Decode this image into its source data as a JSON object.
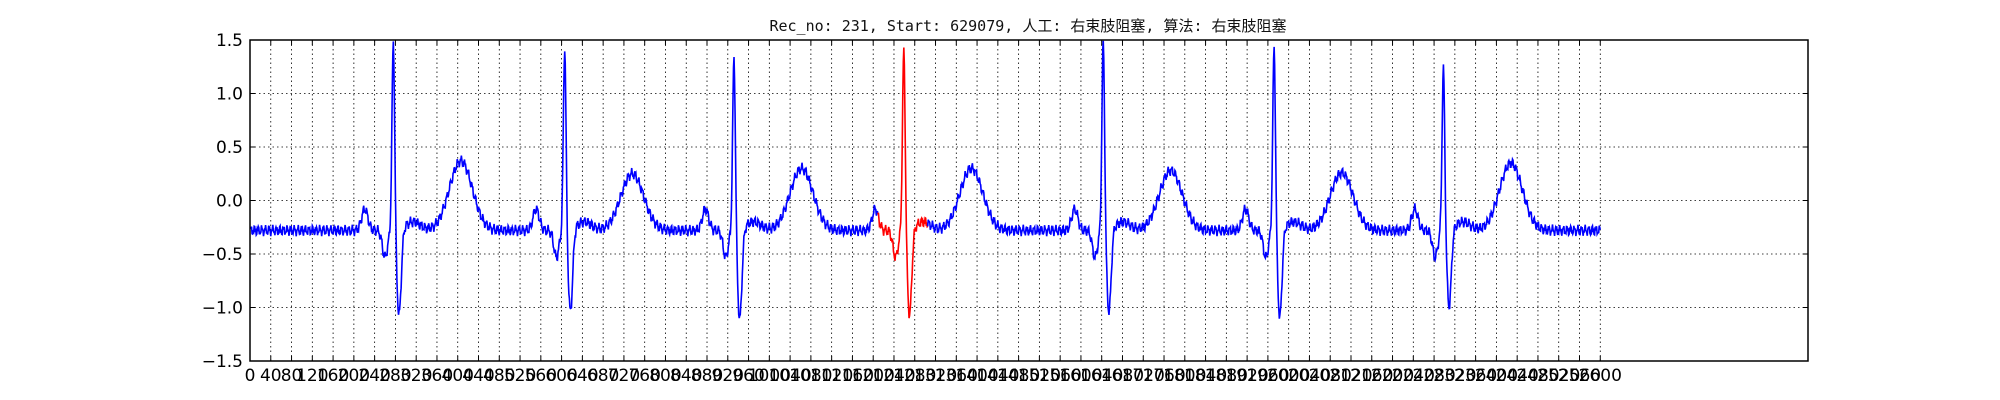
{
  "chart_data": {
    "type": "line",
    "title": "Rec_no: 231, Start: 629079, 人工: 右束肢阻塞, 算法: 右束肢阻塞",
    "xlabel": "",
    "ylabel": "",
    "xlim": [
      0,
      3000
    ],
    "ylim": [
      -1.5,
      1.5
    ],
    "grid": true,
    "y_ticks": [
      1.5,
      1.0,
      0.5,
      0.0,
      -0.5,
      -1.0,
      -1.5
    ],
    "y_tick_labels": [
      "1.5",
      "1.0",
      "0.5",
      "0.0",
      "−0.5",
      "−1.0",
      "−1.5"
    ],
    "x_ticks": [
      0,
      40,
      80,
      120,
      160,
      200,
      240,
      280,
      320,
      360,
      400,
      440,
      480,
      520,
      560,
      600,
      640,
      680,
      720,
      760,
      800,
      840,
      880,
      920,
      960,
      1000,
      1040,
      1080,
      1120,
      1160,
      1200,
      1240,
      1280,
      1320,
      1360,
      1400,
      1440,
      1480,
      1520,
      1560,
      1600,
      1640,
      1680,
      1720,
      1760,
      1800,
      1840,
      1880,
      1920,
      1960,
      2000,
      2040,
      2080,
      2120,
      2160,
      2200,
      2240,
      2280,
      2320,
      2360,
      2400,
      2440,
      2480,
      2520,
      2560,
      2600
    ],
    "x_tick_labels": [
      "0",
      "40",
      "80",
      "120",
      "160",
      "200",
      "240",
      "280",
      "320",
      "360",
      "400",
      "440",
      "480",
      "520",
      "560",
      "600",
      "640",
      "680",
      "720",
      "760",
      "800",
      "840",
      "880",
      "920",
      "960",
      "1000",
      "1040",
      "1080",
      "1120",
      "1160",
      "1200",
      "1240",
      "1280",
      "1320",
      "1360",
      "1400",
      "1440",
      "1480",
      "1520",
      "1560",
      "1600",
      "1640",
      "1680",
      "1720",
      "1760",
      "1800",
      "1840",
      "1880",
      "1920",
      "1960",
      "2000",
      "2040",
      "2080",
      "2120",
      "2160",
      "2200",
      "2240",
      "2280",
      "2320",
      "2360",
      "2400",
      "2440",
      "2480",
      "2520",
      "2560",
      "2600"
    ],
    "beats": {
      "r_peaks": [
        276,
        606,
        932,
        1259,
        1643,
        1972,
        2298
      ],
      "r_amplitudes": [
        1.5,
        1.45,
        1.35,
        1.42,
        1.5,
        1.45,
        1.25
      ],
      "s_depths": [
        -1.08,
        -1.05,
        -1.12,
        -1.08,
        -1.05,
        -1.1,
        -1.0
      ],
      "t_amplitudes": [
        0.35,
        0.37,
        0.25,
        0.3,
        0.3,
        0.28,
        0.26,
        0.35
      ]
    },
    "series": [
      {
        "color": "#0000ff",
        "x": [
          0,
          1209,
          1305,
          2600
        ]
      },
      {
        "color": "#ff0000",
        "x": [
          1209,
          1305
        ]
      }
    ]
  }
}
